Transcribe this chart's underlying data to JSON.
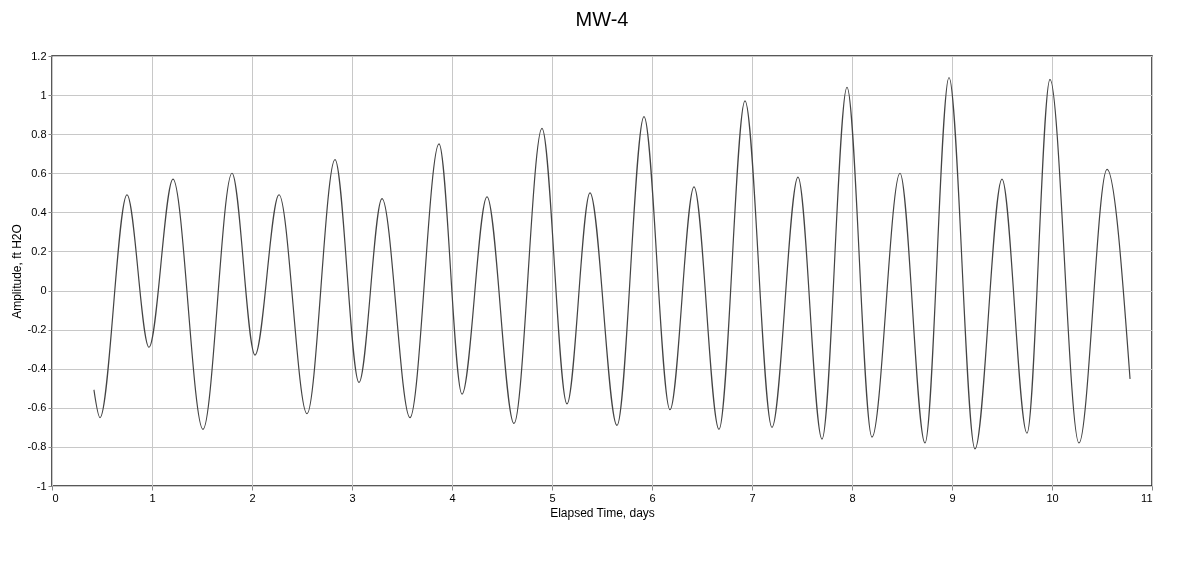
{
  "chart_data": {
    "type": "line",
    "title": "MW-4",
    "xlabel": "Elapsed Time, days",
    "ylabel": "Amplitude, ft H2O",
    "x": [
      0.42,
      0.48,
      0.75,
      0.97,
      1.21,
      1.51,
      1.8,
      2.03,
      2.27,
      2.55,
      2.83,
      3.07,
      3.3,
      3.58,
      3.87,
      4.1,
      4.35,
      4.62,
      4.9,
      5.15,
      5.38,
      5.65,
      5.92,
      6.18,
      6.42,
      6.67,
      6.93,
      7.2,
      7.46,
      7.7,
      7.95,
      8.2,
      8.48,
      8.73,
      8.97,
      9.23,
      9.5,
      9.75,
      9.98,
      10.27,
      10.55,
      10.78
    ],
    "series": [
      {
        "color": "#444444",
        "values": [
          -0.51,
          -0.65,
          0.49,
          -0.29,
          0.57,
          -0.71,
          0.6,
          -0.33,
          0.49,
          -0.63,
          0.67,
          -0.47,
          0.47,
          -0.65,
          0.75,
          -0.53,
          0.48,
          -0.68,
          0.83,
          -0.58,
          0.5,
          -0.69,
          0.89,
          -0.61,
          0.53,
          -0.71,
          0.97,
          -0.7,
          0.58,
          -0.76,
          1.04,
          -0.75,
          0.6,
          -0.78,
          1.09,
          -0.81,
          0.57,
          -0.73,
          1.08,
          -0.78,
          0.62,
          -0.45
        ]
      }
    ],
    "xlim": [
      0,
      11
    ],
    "xticks": [
      0,
      1,
      2,
      3,
      4,
      5,
      6,
      7,
      8,
      9,
      10,
      11
    ],
    "ylim": [
      -1,
      1.2
    ],
    "yticks": [
      -1,
      -0.8,
      -0.6,
      -0.4,
      -0.2,
      0,
      0.2,
      0.4,
      0.6,
      0.8,
      1,
      1.2
    ],
    "grid": true,
    "marker": "none",
    "line_style": "solid"
  }
}
